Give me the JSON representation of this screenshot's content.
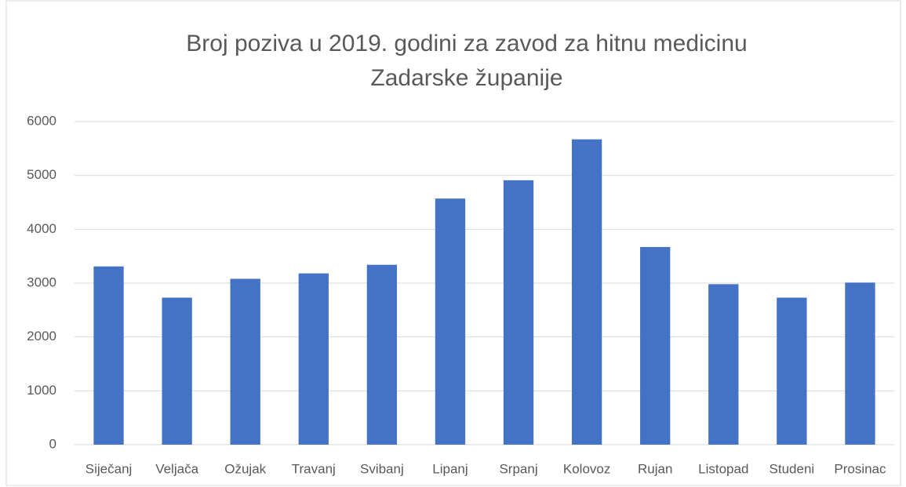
{
  "chart_data": {
    "type": "bar",
    "title": [
      "Broj poziva u 2019. godini za zavod za hitnu medicinu",
      "Zadarske županije"
    ],
    "categories": [
      "Siječanj",
      "Veljača",
      "Ožujak",
      "Travanj",
      "Svibanj",
      "Lipanj",
      "Srpanj",
      "Kolovoz",
      "Rujan",
      "Listopad",
      "Studeni",
      "Prosinac"
    ],
    "values": [
      3310,
      2730,
      3080,
      3180,
      3340,
      4570,
      4910,
      5670,
      3670,
      2980,
      2730,
      3010
    ],
    "color": "#4472c4",
    "ylim": [
      0,
      6000
    ],
    "yticks": [
      0,
      1000,
      2000,
      3000,
      4000,
      5000,
      6000
    ],
    "grid": true
  }
}
